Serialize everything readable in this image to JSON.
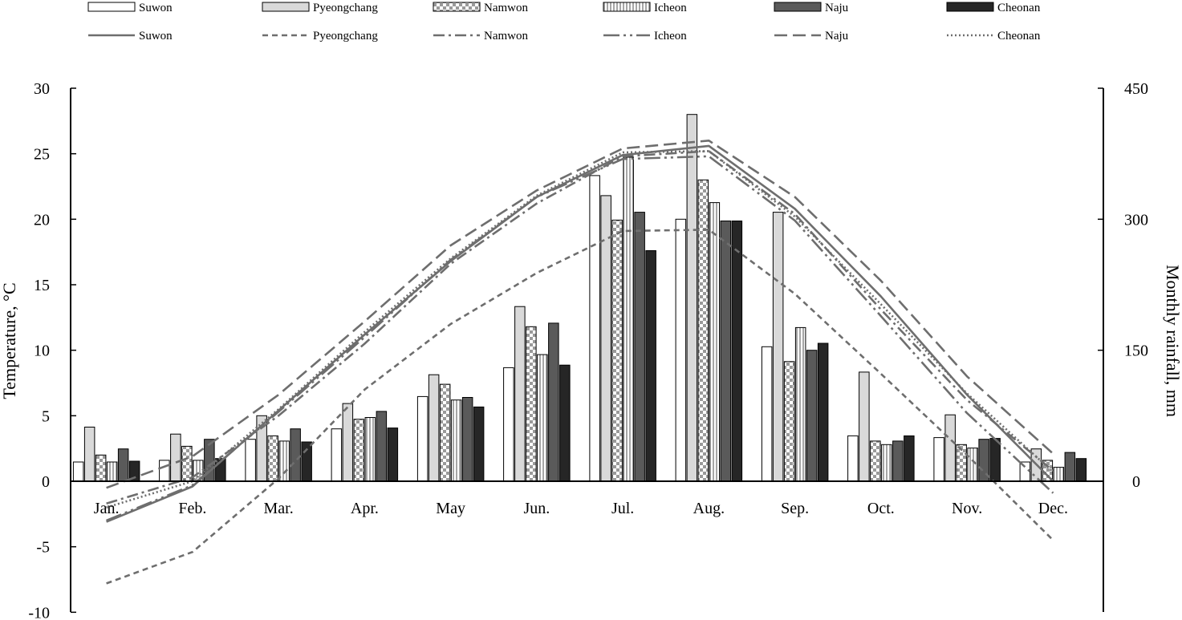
{
  "chart_data": {
    "type": "bar",
    "combined_with": "line",
    "categories": [
      "Jan.",
      "Feb.",
      "Mar.",
      "Apr.",
      "May",
      "Jun.",
      "Jul.",
      "Aug.",
      "Sep.",
      "Oct.",
      "Nov.",
      "Dec."
    ],
    "ylabel_left": "Temperature, °C",
    "ylabel_right": "Monthly rainfall, mm",
    "ylim_left": [
      -10,
      30
    ],
    "ylim_right": [
      0,
      450
    ],
    "yticks_left": [
      "-10",
      "-5",
      "0",
      "5",
      "10",
      "15",
      "20",
      "25",
      "30"
    ],
    "yticks_right": [
      "0",
      "150",
      "300",
      "450"
    ],
    "grid": false,
    "legend_position": "top",
    "bar_series": [
      {
        "name": "Suwon",
        "axis": "right",
        "fill": "#ffffff",
        "pattern": "solid",
        "values": [
          22,
          24,
          48,
          60,
          97,
          130,
          350,
          300,
          154,
          52,
          50,
          22
        ]
      },
      {
        "name": "Pyeongchang",
        "axis": "right",
        "fill": "#d9d9d9",
        "pattern": "solid",
        "values": [
          62,
          54,
          75,
          89,
          122,
          200,
          327,
          420,
          308,
          125,
          76,
          37
        ]
      },
      {
        "name": "Namwon",
        "axis": "right",
        "fill": "#bfbfbf",
        "pattern": "checker",
        "values": [
          30,
          40,
          52,
          71,
          111,
          177,
          299,
          345,
          137,
          46,
          42,
          24
        ]
      },
      {
        "name": "Icheon",
        "axis": "right",
        "fill": "#e6e6e6",
        "pattern": "vertical-stripes",
        "values": [
          22,
          24,
          46,
          73,
          93,
          145,
          371,
          319,
          176,
          42,
          38,
          16
        ]
      },
      {
        "name": "Naju",
        "axis": "right",
        "fill": "#5a5a5a",
        "pattern": "solid",
        "values": [
          37,
          48,
          60,
          80,
          96,
          181,
          308,
          298,
          150,
          46,
          48,
          33
        ]
      },
      {
        "name": "Cheonan",
        "axis": "right",
        "fill": "#262626",
        "pattern": "solid",
        "values": [
          23,
          26,
          45,
          61,
          85,
          133,
          264,
          298,
          158,
          52,
          49,
          26
        ]
      }
    ],
    "line_series": [
      {
        "name": "Suwon",
        "axis": "left",
        "stroke": "#6e6e6e",
        "dash": "solid",
        "values": [
          -3.1,
          -0.4,
          5.4,
          11.2,
          16.8,
          21.7,
          24.9,
          25.6,
          20.8,
          14.1,
          6.6,
          0.0
        ]
      },
      {
        "name": "Pyeongchang",
        "axis": "left",
        "stroke": "#6e6e6e",
        "dash": "short-dash",
        "values": [
          -7.8,
          -5.4,
          0.2,
          7.0,
          12.0,
          15.9,
          19.1,
          19.2,
          14.3,
          8.2,
          2.0,
          -4.5
        ]
      },
      {
        "name": "Namwon",
        "axis": "left",
        "stroke": "#6e6e6e",
        "dash": "dash-dot",
        "values": [
          -1.7,
          0.3,
          5.0,
          10.5,
          16.6,
          21.2,
          24.8,
          25.2,
          20.4,
          13.1,
          6.2,
          0.8
        ]
      },
      {
        "name": "Icheon",
        "axis": "left",
        "stroke": "#6e6e6e",
        "dash": "long-dash-dot-dot",
        "values": [
          -3.0,
          -0.3,
          5.3,
          11.0,
          16.9,
          21.7,
          24.6,
          24.8,
          19.9,
          12.6,
          5.2,
          -0.9
        ]
      },
      {
        "name": "Naju",
        "axis": "left",
        "stroke": "#6e6e6e",
        "dash": "long-dash",
        "values": [
          -0.5,
          1.9,
          6.6,
          12.2,
          18.0,
          22.2,
          25.4,
          26.0,
          21.7,
          15.3,
          8.0,
          2.1
        ]
      },
      {
        "name": "Cheonan",
        "axis": "left",
        "stroke": "#6e6e6e",
        "dash": "dotted",
        "values": [
          -2.0,
          0.0,
          5.5,
          11.4,
          17.0,
          21.8,
          25.1,
          25.2,
          20.2,
          13.5,
          6.7,
          0.7
        ]
      }
    ]
  }
}
